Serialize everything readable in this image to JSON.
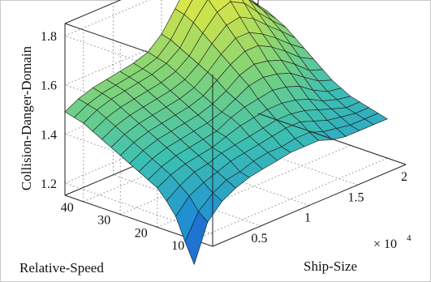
{
  "chart_data": {
    "type": "surface",
    "title": "",
    "zlabel": "Collision-Danger-Domain",
    "xlabel": "Ship-Size",
    "ylabel": "Relative-Speed",
    "x_multiplier_label": "× 10",
    "x_multiplier_exp": "4",
    "x_ticks": [
      0.5,
      1,
      1.5,
      2
    ],
    "x_tick_labels": [
      "0.5",
      "1",
      "1.5",
      "2"
    ],
    "y_ticks": [
      10,
      20,
      30,
      40
    ],
    "y_tick_labels": [
      "10",
      "20",
      "30",
      "40"
    ],
    "z_ticks": [
      1.2,
      1.4,
      1.6,
      1.8
    ],
    "z_tick_labels": [
      "1.2",
      "1.4",
      "1.6",
      "1.8"
    ],
    "xlim": [
      0,
      2
    ],
    "ylim": [
      5,
      45
    ],
    "zlim": [
      1.15,
      1.85
    ],
    "grid": true,
    "colormap": [
      "#1b45c9",
      "#1f8fd4",
      "#3cbfb3",
      "#7ed37a",
      "#c8e14f",
      "#f0ee40"
    ],
    "surface": {
      "x": [
        0,
        0.14,
        0.29,
        0.43,
        0.57,
        0.71,
        0.86,
        1.0,
        1.14,
        1.29,
        1.43,
        1.57,
        1.71,
        1.86,
        2.0
      ],
      "y": [
        10,
        12.5,
        15,
        17.5,
        20,
        22.5,
        25,
        27.5,
        30,
        32.5,
        35,
        37.5,
        40,
        42.5,
        45
      ],
      "z": [
        [
          1.05,
          1.2,
          1.26,
          1.29,
          1.31,
          1.32,
          1.33,
          1.34,
          1.34,
          1.34,
          1.32,
          1.31,
          1.31,
          1.31,
          1.31
        ],
        [
          1.13,
          1.23,
          1.28,
          1.31,
          1.32,
          1.34,
          1.35,
          1.35,
          1.36,
          1.36,
          1.34,
          1.33,
          1.32,
          1.32,
          1.32
        ],
        [
          1.22,
          1.28,
          1.31,
          1.33,
          1.35,
          1.36,
          1.37,
          1.38,
          1.39,
          1.39,
          1.37,
          1.35,
          1.34,
          1.33,
          1.33
        ],
        [
          1.27,
          1.31,
          1.34,
          1.35,
          1.37,
          1.38,
          1.39,
          1.4,
          1.41,
          1.41,
          1.4,
          1.38,
          1.36,
          1.34,
          1.34
        ],
        [
          1.31,
          1.34,
          1.36,
          1.37,
          1.38,
          1.4,
          1.42,
          1.43,
          1.44,
          1.44,
          1.43,
          1.41,
          1.38,
          1.36,
          1.35
        ],
        [
          1.33,
          1.36,
          1.38,
          1.39,
          1.4,
          1.41,
          1.44,
          1.46,
          1.47,
          1.48,
          1.47,
          1.45,
          1.41,
          1.38,
          1.37
        ],
        [
          1.35,
          1.38,
          1.4,
          1.41,
          1.42,
          1.43,
          1.45,
          1.48,
          1.51,
          1.52,
          1.51,
          1.49,
          1.45,
          1.41,
          1.39
        ],
        [
          1.37,
          1.4,
          1.42,
          1.43,
          1.44,
          1.45,
          1.47,
          1.5,
          1.54,
          1.56,
          1.55,
          1.53,
          1.49,
          1.44,
          1.42
        ],
        [
          1.39,
          1.42,
          1.44,
          1.45,
          1.46,
          1.47,
          1.49,
          1.53,
          1.57,
          1.6,
          1.6,
          1.57,
          1.53,
          1.48,
          1.45
        ],
        [
          1.41,
          1.44,
          1.46,
          1.47,
          1.48,
          1.49,
          1.51,
          1.55,
          1.6,
          1.64,
          1.64,
          1.61,
          1.57,
          1.52,
          1.48
        ],
        [
          1.43,
          1.46,
          1.48,
          1.49,
          1.5,
          1.51,
          1.53,
          1.57,
          1.63,
          1.68,
          1.69,
          1.66,
          1.61,
          1.56,
          1.51
        ],
        [
          1.45,
          1.48,
          1.5,
          1.51,
          1.52,
          1.53,
          1.55,
          1.59,
          1.66,
          1.72,
          1.74,
          1.71,
          1.65,
          1.59,
          1.54
        ],
        [
          1.47,
          1.5,
          1.52,
          1.53,
          1.54,
          1.55,
          1.57,
          1.61,
          1.69,
          1.76,
          1.79,
          1.76,
          1.69,
          1.62,
          1.56
        ],
        [
          1.48,
          1.51,
          1.53,
          1.54,
          1.55,
          1.56,
          1.58,
          1.63,
          1.71,
          1.79,
          1.83,
          1.8,
          1.72,
          1.64,
          1.58
        ],
        [
          1.49,
          1.52,
          1.54,
          1.55,
          1.56,
          1.57,
          1.59,
          1.64,
          1.72,
          1.81,
          1.86,
          1.83,
          1.74,
          1.66,
          1.59
        ]
      ]
    }
  }
}
